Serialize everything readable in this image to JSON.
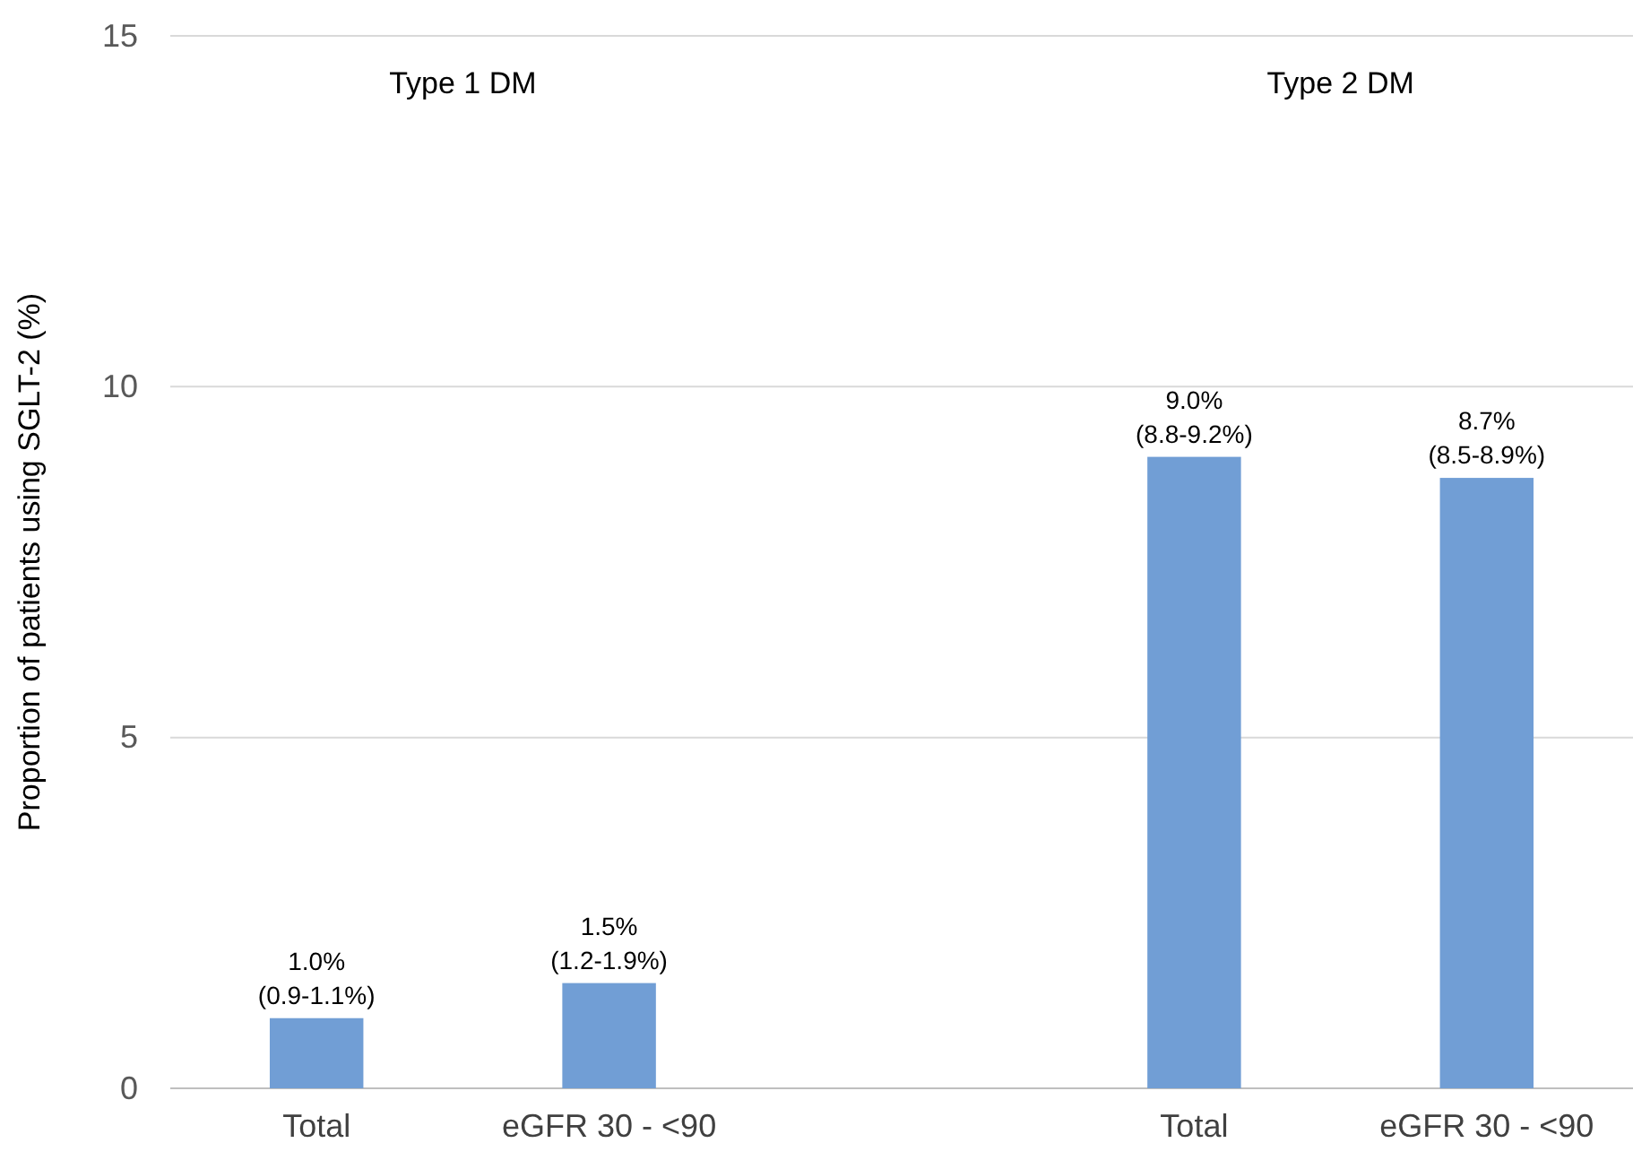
{
  "chart_data": {
    "type": "bar",
    "ylabel": "Proportion of patients using SGLT-2 (%)",
    "categories": [
      "Total",
      "eGFR 30 - <90",
      null,
      "Total",
      "eGFR 30 - <90"
    ],
    "values": [
      1.0,
      1.5,
      null,
      9.0,
      8.7
    ],
    "value_labels": [
      "1.0%\n(0.9-1.1%)",
      "1.5%\n(1.2-1.9%)",
      null,
      "9.0%\n(8.8-9.2%)",
      "8.7%\n(8.5-8.9%)"
    ],
    "color": "#719ed5",
    "ylim": [
      0,
      15
    ],
    "yticks": [
      0,
      5,
      10,
      15
    ],
    "grid": "y",
    "annotations": [
      "Type 1 DM",
      "Type 2 DM"
    ]
  }
}
